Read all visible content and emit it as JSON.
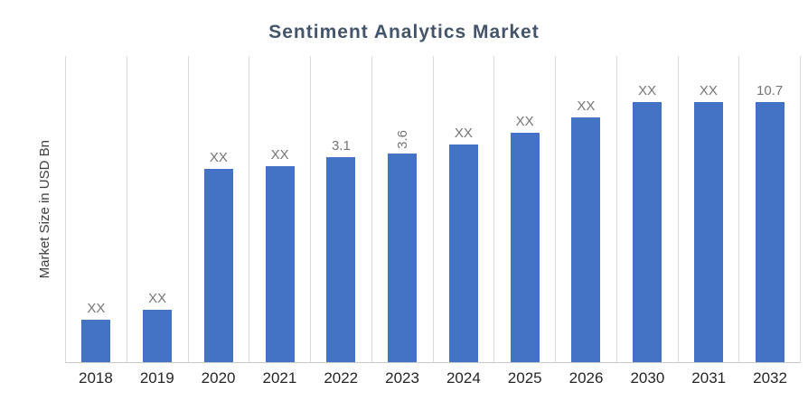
{
  "chart_data": {
    "type": "bar",
    "title": "Sentiment Analytics Market",
    "ylabel": "Market Size in USD Bn",
    "xlabel": "",
    "categories": [
      "2018",
      "2019",
      "2020",
      "2021",
      "2022",
      "2023",
      "2024",
      "2025",
      "2026",
      "2030",
      "2031",
      "2032"
    ],
    "labels": [
      "XX",
      "XX",
      "XX",
      "XX",
      "3.1",
      "3.6",
      "XX",
      "XX",
      "XX",
      "XX",
      "XX",
      "10.7"
    ],
    "values": [
      null,
      null,
      null,
      null,
      3.1,
      3.6,
      null,
      null,
      null,
      null,
      null,
      10.7
    ],
    "heights_pct": [
      14,
      17,
      63,
      64,
      67,
      68,
      71,
      75,
      80,
      85,
      85,
      85
    ],
    "rotated_label_indices": [
      5
    ],
    "bar_color": "#4472C4",
    "label_color": "#757575",
    "gridlines": "vertical-only",
    "legend": "none"
  }
}
